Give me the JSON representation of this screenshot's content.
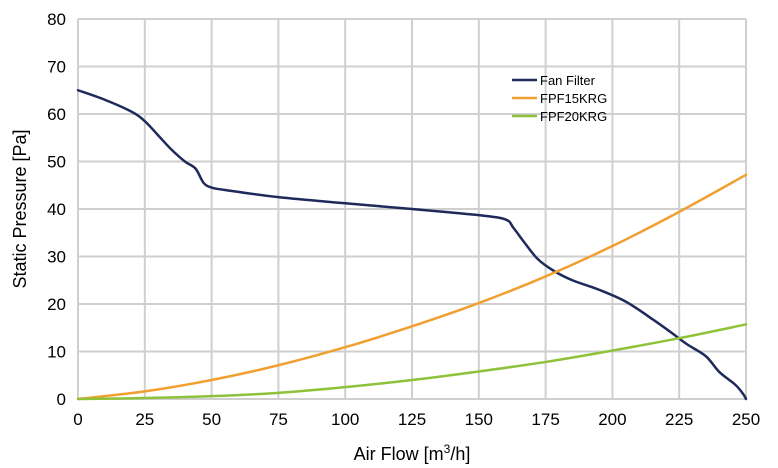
{
  "chart_data": {
    "type": "line",
    "xlabel": "Air Flow [m³/h]",
    "xlabel_main": "Air Flow [m",
    "xlabel_sup": "3",
    "xlabel_end": "/h]",
    "ylabel": "Static Pressure [Pa]",
    "xlim": [
      0,
      250
    ],
    "ylim": [
      0,
      80
    ],
    "xticks": [
      0,
      25,
      50,
      75,
      100,
      125,
      150,
      175,
      200,
      225,
      250
    ],
    "yticks": [
      0,
      10,
      20,
      30,
      40,
      50,
      60,
      70,
      80
    ],
    "grid": true,
    "legend_position": "top-right",
    "series": [
      {
        "name": "Fan Filter",
        "color": "#1f2a5a",
        "x": [
          0,
          10,
          20,
          25,
          30,
          35,
          40,
          44,
          47,
          50,
          55,
          75,
          100,
          125,
          150,
          160,
          163,
          167,
          172,
          178,
          185,
          195,
          205,
          215,
          222,
          228,
          235,
          240,
          246,
          249,
          250
        ],
        "y": [
          65,
          63,
          60.5,
          58.5,
          55.5,
          52.5,
          50,
          48.5,
          45.5,
          44.5,
          44,
          42.5,
          41.2,
          40,
          38.7,
          37.8,
          36,
          33,
          29.5,
          27,
          25,
          23,
          20.5,
          16.8,
          14,
          11.5,
          9,
          5.7,
          3,
          1,
          0
        ]
      },
      {
        "name": "FPF15KRG",
        "color": "#f0a030",
        "x": [
          0,
          25,
          50,
          75,
          100,
          125,
          150,
          175,
          200,
          225,
          250
        ],
        "y": [
          0,
          1.6,
          4,
          7.1,
          10.9,
          15.3,
          20.2,
          25.8,
          32.2,
          39.4,
          47.2
        ]
      },
      {
        "name": "FPF20KRG",
        "color": "#8fc23a",
        "x": [
          0,
          25,
          50,
          75,
          100,
          125,
          150,
          175,
          200,
          225,
          250
        ],
        "y": [
          0,
          0.2,
          0.6,
          1.3,
          2.5,
          4,
          5.8,
          7.8,
          10.2,
          12.8,
          15.7
        ]
      }
    ]
  }
}
